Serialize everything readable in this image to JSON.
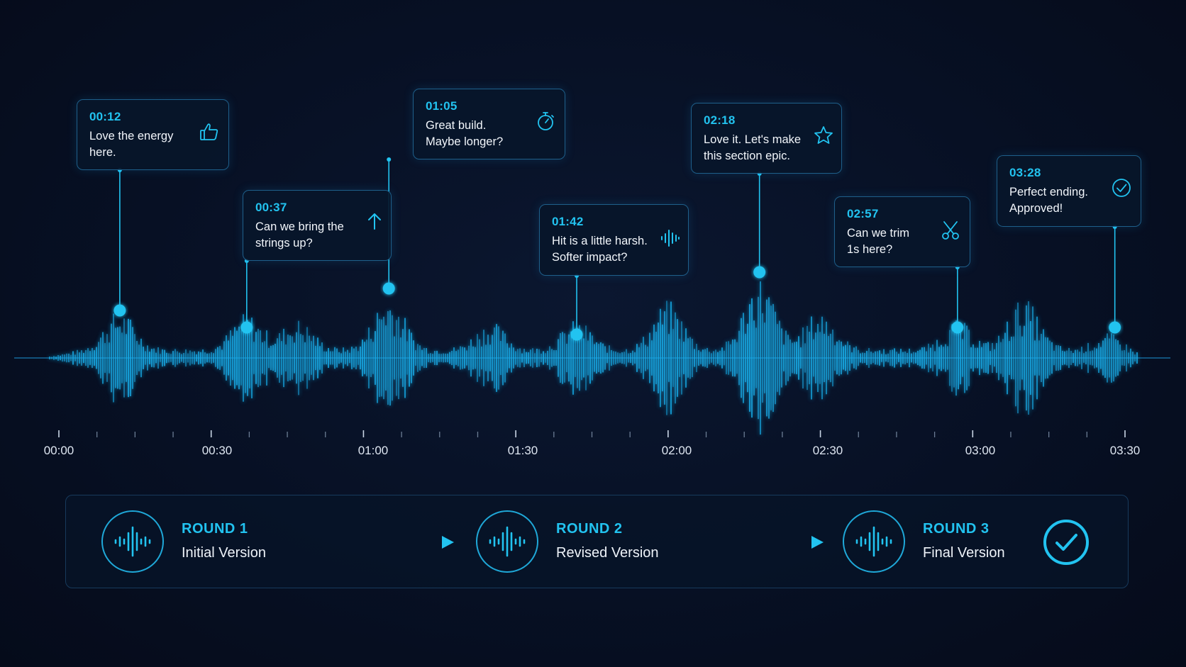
{
  "colors": {
    "accent": "#22c3f0",
    "wave": "#17a6e6",
    "border": "#1e5f8a",
    "background": "#060d1f"
  },
  "comments": [
    {
      "time": "00:12",
      "text": "Love the energy\nhere.",
      "icon": "thumbs-up-icon",
      "marker_seconds": 12
    },
    {
      "time": "00:37",
      "text": "Can we bring the\nstrings up?",
      "icon": "arrow-up-icon",
      "marker_seconds": 37
    },
    {
      "time": "01:05",
      "text": "Great build.\nMaybe longer?",
      "icon": "stopwatch-icon",
      "marker_seconds": 65
    },
    {
      "time": "01:42",
      "text": "Hit is a little harsh.\nSofter impact?",
      "icon": "waveform-icon",
      "marker_seconds": 102
    },
    {
      "time": "02:18",
      "text": "Love it. Let's make\nthis section epic.",
      "icon": "star-icon",
      "marker_seconds": 138
    },
    {
      "time": "02:57",
      "text": "Can we trim\n1s here?",
      "icon": "scissors-icon",
      "marker_seconds": 177
    },
    {
      "time": "03:28",
      "text": "Perfect ending.\nApproved!",
      "icon": "check-circle-icon",
      "marker_seconds": 208
    }
  ],
  "timeline": {
    "ticks": [
      "00:00",
      "00:30",
      "01:00",
      "01:30",
      "02:00",
      "02:30",
      "03:00",
      "03:30"
    ]
  },
  "rounds": [
    {
      "title": "ROUND 1",
      "subtitle": "Initial Version",
      "icon": "audio-wave-icon"
    },
    {
      "title": "ROUND 2",
      "subtitle": "Revised Version",
      "icon": "audio-wave-icon"
    },
    {
      "title": "ROUND 3",
      "subtitle": "Final Version",
      "icon": "audio-wave-icon"
    }
  ],
  "final_status_icon": "check-circle-icon"
}
